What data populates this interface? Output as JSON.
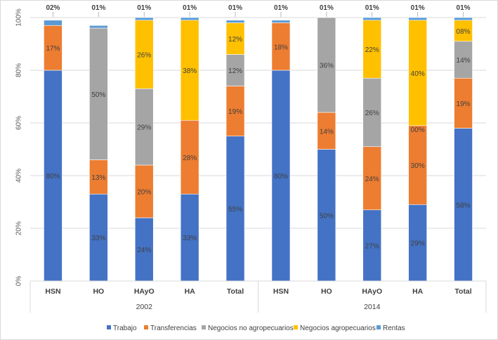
{
  "chart_data": {
    "type": "bar",
    "stacked": "percent",
    "title": "",
    "xlabel": "",
    "ylabel": "",
    "ylim": [
      0,
      100
    ],
    "yticks": [
      "0%",
      "20%",
      "40%",
      "60%",
      "80%",
      "100%"
    ],
    "grid": true,
    "legend_position": "bottom",
    "groups": [
      {
        "label": "2002",
        "categories": [
          "HSN",
          "HO",
          "HAyO",
          "HA",
          "Total"
        ]
      },
      {
        "label": "2014",
        "categories": [
          "HSN",
          "HO",
          "HAyO",
          "HA",
          "Total"
        ]
      }
    ],
    "categories": [
      "HSN",
      "HO",
      "HAyO",
      "HA",
      "Total",
      "HSN",
      "HO",
      "HAyO",
      "HA",
      "Total"
    ],
    "series": [
      {
        "name": "Trabajo",
        "color": "#4472c4",
        "values": [
          80,
          33,
          24,
          33,
          55,
          80,
          50,
          27,
          29,
          58
        ],
        "labels": [
          "80%",
          "33%",
          "24%",
          "33%",
          "55%",
          "80%",
          "50%",
          "27%",
          "29%",
          "58%"
        ]
      },
      {
        "name": "Transferencias",
        "color": "#ed7d31",
        "values": [
          17,
          13,
          20,
          28,
          19,
          18,
          14,
          24,
          30,
          19
        ],
        "labels": [
          "17%",
          "13%",
          "20%",
          "28%",
          "19%",
          "18%",
          "14%",
          "24%",
          "30%",
          "19%"
        ]
      },
      {
        "name": "Negocios no agropecuarios",
        "color": "#a5a5a5",
        "values": [
          0,
          50,
          29,
          0,
          12,
          0,
          36,
          26,
          0,
          14
        ],
        "labels": [
          "",
          "50%",
          "29%",
          "",
          "12%",
          "",
          "36%",
          "26%",
          "00%",
          "14%"
        ]
      },
      {
        "name": "Negocios agropecuarios",
        "color": "#ffc000",
        "values": [
          0,
          0,
          26,
          38,
          12,
          0,
          0,
          22,
          40,
          8
        ],
        "labels": [
          "",
          "",
          "26%",
          "38%",
          "12%",
          "",
          "",
          "22%",
          "40%",
          "08%"
        ]
      },
      {
        "name": "Rentas",
        "color": "#5b9bd5",
        "values": [
          2,
          1,
          1,
          1,
          1,
          1,
          1,
          1,
          1,
          1
        ],
        "labels": [
          "02%",
          "01%",
          "01%",
          "01%",
          "01%",
          "01%",
          "01%",
          "01%",
          "01%",
          "01%"
        ]
      }
    ]
  }
}
